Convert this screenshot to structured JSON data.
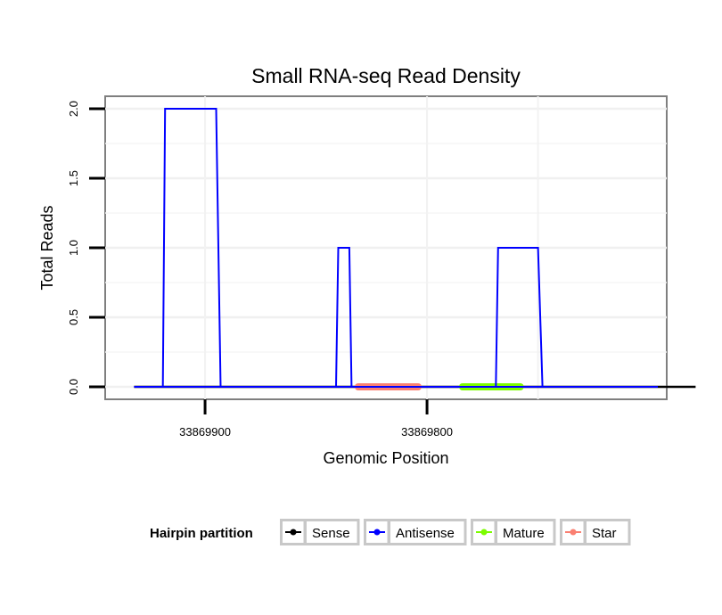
{
  "chart_data": {
    "type": "line",
    "title": "Small RNA-seq Read Density",
    "xlabel": "Genomic Position",
    "ylabel": "Total Reads",
    "xlim": [
      33869945,
      33869692
    ],
    "ylim": [
      -0.09,
      2.09
    ],
    "x_ticks": [
      33869900,
      33869800
    ],
    "x_tick_labels": [
      "33869900",
      "33869800"
    ],
    "y_ticks": [
      0.0,
      0.5,
      1.0,
      1.5,
      2.0
    ],
    "y_tick_labels": [
      "0.0",
      "0.5",
      "1.0",
      "1.5",
      "2.0"
    ],
    "grid": true,
    "legend_position": "bottom",
    "legend_title": "Hairpin partition",
    "series": [
      {
        "name": "Sense",
        "color": "#000000",
        "x": [
          33869932,
          33869679
        ],
        "y": [
          0,
          0
        ]
      },
      {
        "name": "Antisense",
        "color": "#0000ff",
        "x": [
          33869932,
          33869919,
          33869918,
          33869895,
          33869893,
          33869876,
          33869858,
          33869841,
          33869840,
          33869835,
          33869834,
          33869836,
          33869769,
          33869768,
          33869750,
          33869748,
          33869697,
          33869696,
          33869932
        ],
        "y": [
          0,
          0,
          2,
          2,
          0,
          0,
          0,
          0,
          1,
          1,
          0,
          0,
          0,
          1,
          1,
          0,
          0,
          0,
          0
        ]
      },
      {
        "name": "Mature",
        "color": "#7cfc00",
        "x": [
          33869784,
          33869758
        ],
        "y": [
          0,
          0
        ]
      },
      {
        "name": "Star",
        "color": "#fa8072",
        "x": [
          33869831,
          33869804
        ],
        "y": [
          0,
          0
        ]
      }
    ]
  }
}
